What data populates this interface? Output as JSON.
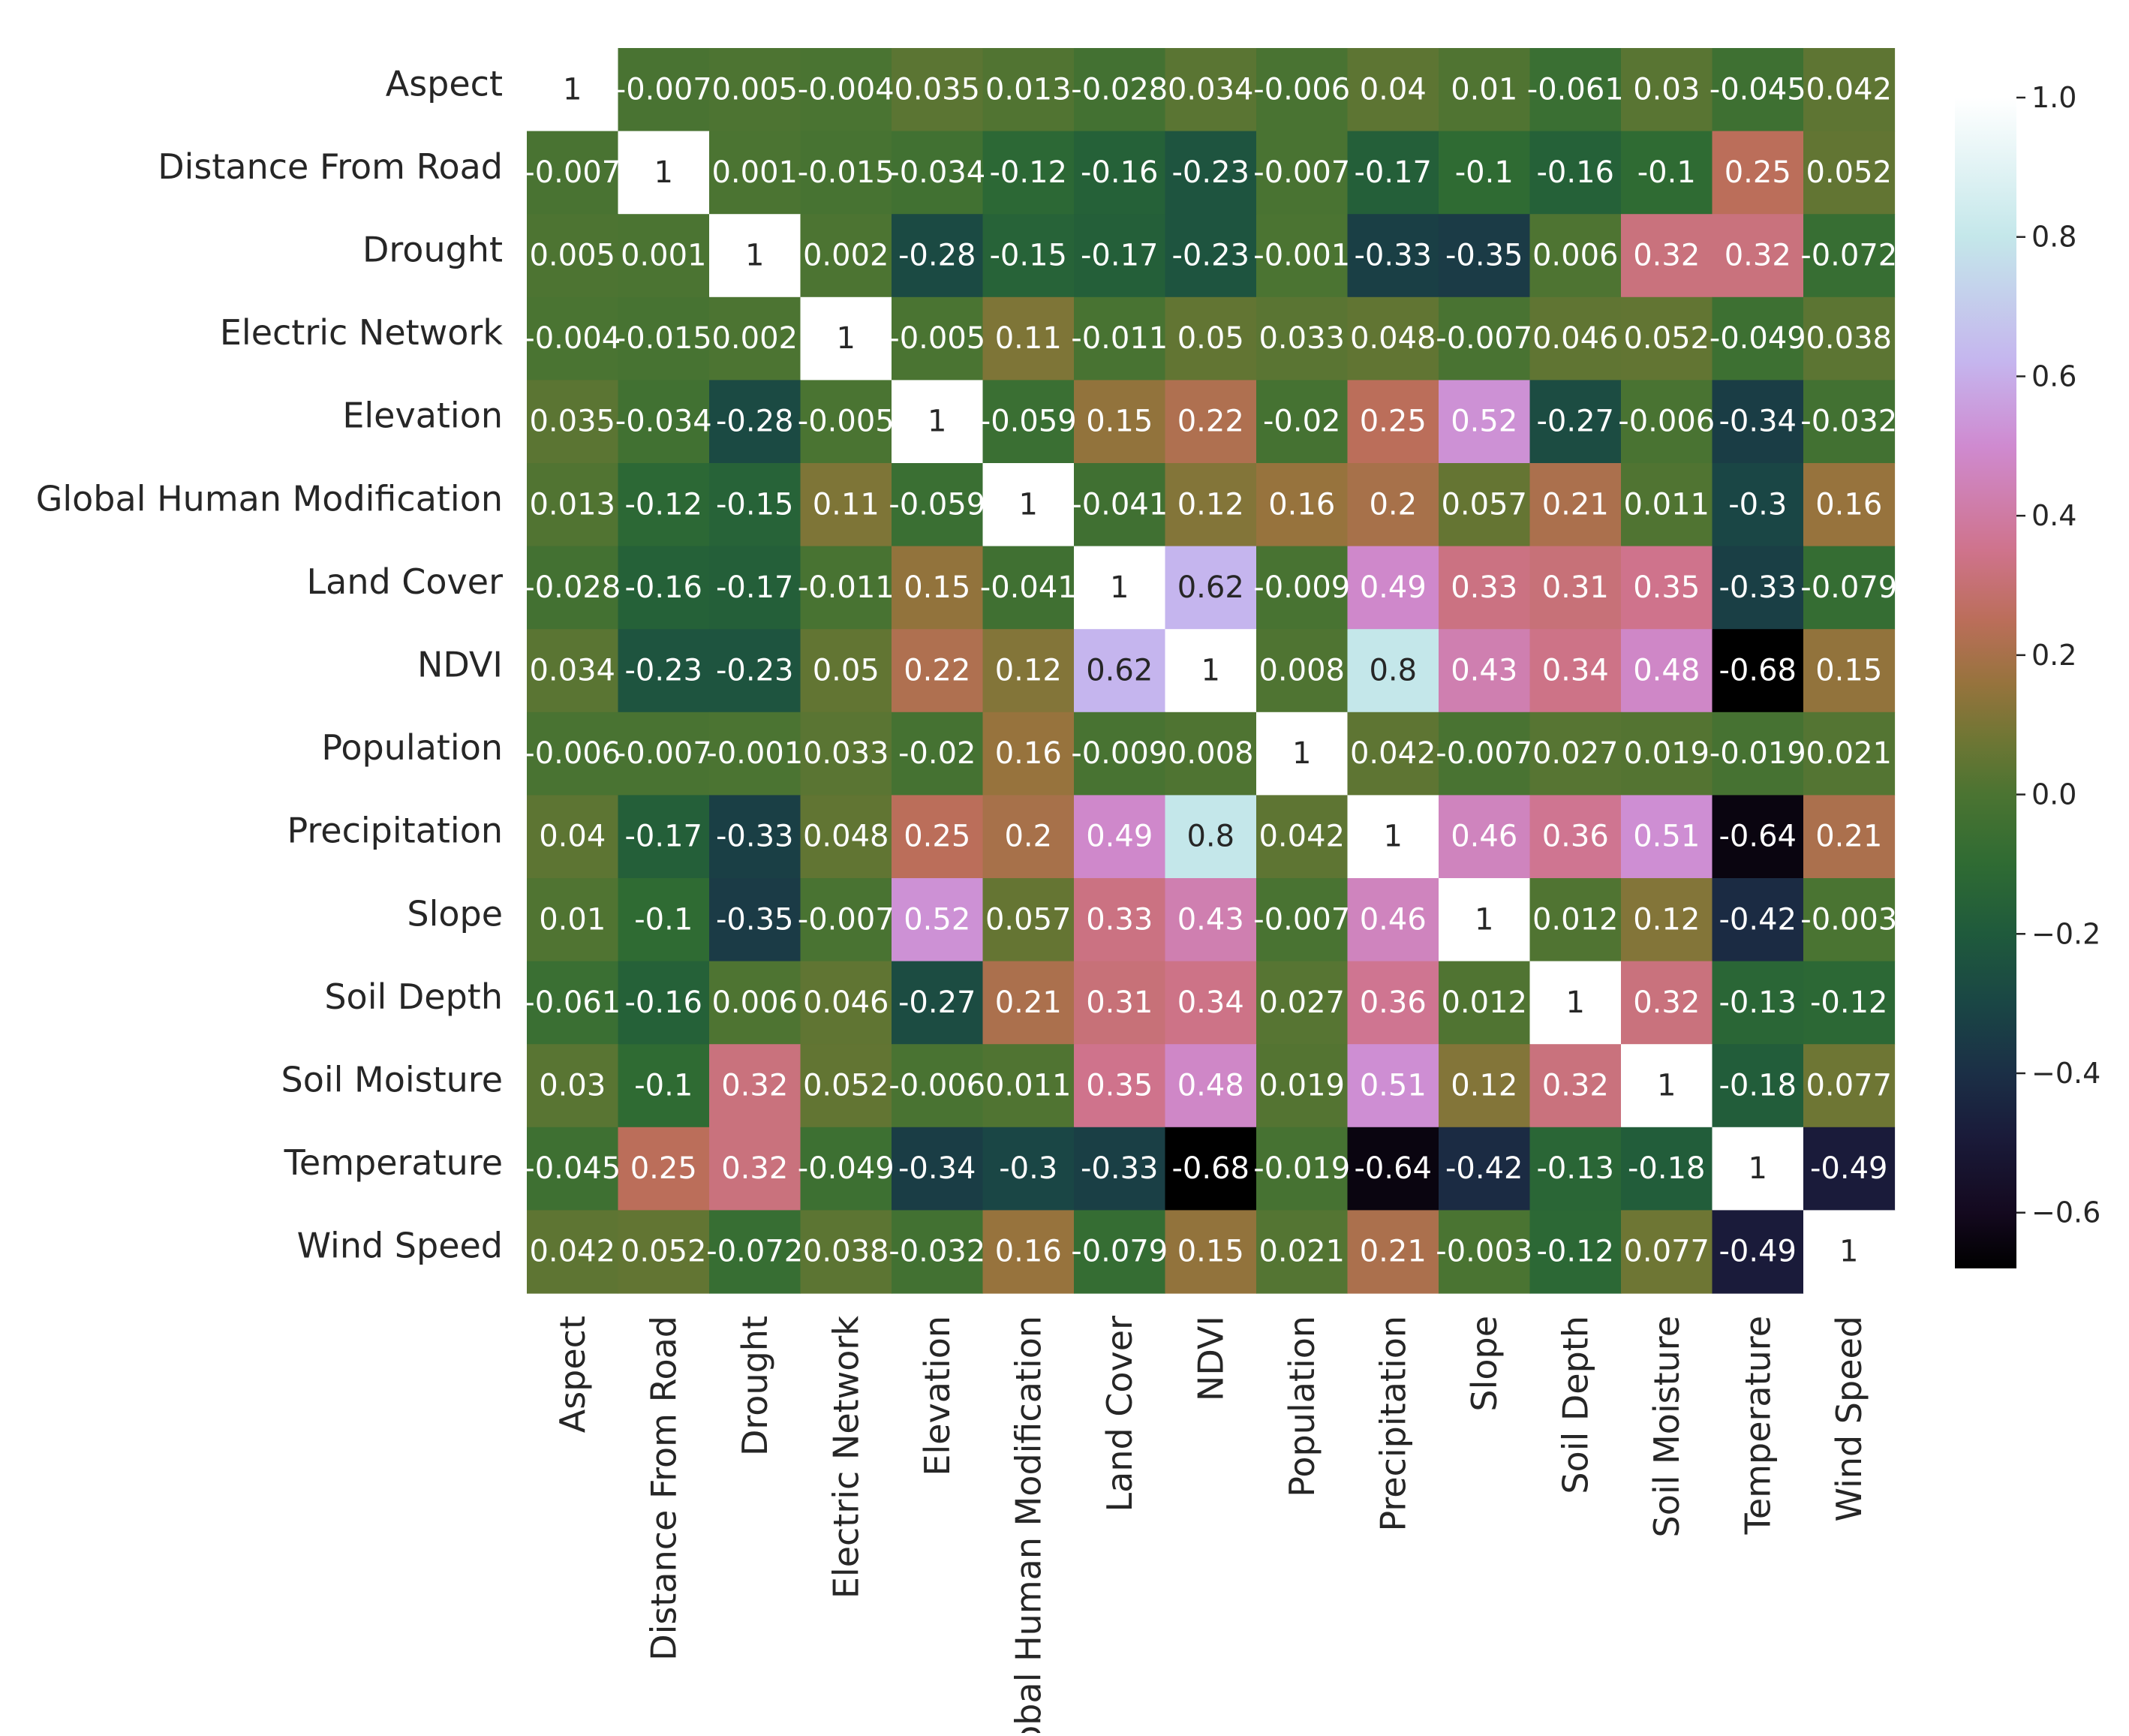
{
  "chart_data": {
    "type": "heatmap",
    "title": "",
    "xlabel": "",
    "ylabel": "",
    "variables": [
      "Aspect",
      "Distance From Road",
      "Drought",
      "Electric Network",
      "Elevation",
      "Global Human Modification",
      "Land Cover",
      "NDVI",
      "Population",
      "Precipitation",
      "Slope",
      "Soil Depth",
      "Soil Moisture",
      "Temperature",
      "Wind Speed"
    ],
    "values": [
      [
        "1",
        "-0.007",
        "0.005",
        "-0.004",
        "0.035",
        "0.013",
        "-0.028",
        "0.034",
        "-0.006",
        "0.04",
        "0.01",
        "-0.061",
        "0.03",
        "-0.045",
        "0.042"
      ],
      [
        "-0.007",
        "1",
        "0.001",
        "-0.015",
        "-0.034",
        "-0.12",
        "-0.16",
        "-0.23",
        "-0.007",
        "-0.17",
        "-0.1",
        "-0.16",
        "-0.1",
        "0.25",
        "0.052"
      ],
      [
        "0.005",
        "0.001",
        "1",
        "0.002",
        "-0.28",
        "-0.15",
        "-0.17",
        "-0.23",
        "-0.001",
        "-0.33",
        "-0.35",
        "0.006",
        "0.32",
        "0.32",
        "-0.072"
      ],
      [
        "-0.004",
        "-0.015",
        "0.002",
        "1",
        "-0.005",
        "0.11",
        "-0.011",
        "0.05",
        "0.033",
        "0.048",
        "-0.007",
        "0.046",
        "0.052",
        "-0.049",
        "0.038"
      ],
      [
        "0.035",
        "-0.034",
        "-0.28",
        "-0.005",
        "1",
        "-0.059",
        "0.15",
        "0.22",
        "-0.02",
        "0.25",
        "0.52",
        "-0.27",
        "-0.006",
        "-0.34",
        "-0.032"
      ],
      [
        "0.013",
        "-0.12",
        "-0.15",
        "0.11",
        "-0.059",
        "1",
        "-0.041",
        "0.12",
        "0.16",
        "0.2",
        "0.057",
        "0.21",
        "0.011",
        "-0.3",
        "0.16"
      ],
      [
        "-0.028",
        "-0.16",
        "-0.17",
        "-0.011",
        "0.15",
        "-0.041",
        "1",
        "0.62",
        "-0.009",
        "0.49",
        "0.33",
        "0.31",
        "0.35",
        "-0.33",
        "-0.079"
      ],
      [
        "0.034",
        "-0.23",
        "-0.23",
        "0.05",
        "0.22",
        "0.12",
        "0.62",
        "1",
        "0.008",
        "0.8",
        "0.43",
        "0.34",
        "0.48",
        "-0.68",
        "0.15"
      ],
      [
        "-0.006",
        "-0.007",
        "-0.001",
        "0.033",
        "-0.02",
        "0.16",
        "-0.009",
        "0.008",
        "1",
        "0.042",
        "-0.007",
        "0.027",
        "0.019",
        "-0.019",
        "0.021"
      ],
      [
        "0.04",
        "-0.17",
        "-0.33",
        "0.048",
        "0.25",
        "0.2",
        "0.49",
        "0.8",
        "0.042",
        "1",
        "0.46",
        "0.36",
        "0.51",
        "-0.64",
        "0.21"
      ],
      [
        "0.01",
        "-0.1",
        "-0.35",
        "-0.007",
        "0.52",
        "0.057",
        "0.33",
        "0.43",
        "-0.007",
        "0.46",
        "1",
        "0.012",
        "0.12",
        "-0.42",
        "-0.003"
      ],
      [
        "-0.061",
        "-0.16",
        "0.006",
        "0.046",
        "-0.27",
        "0.21",
        "0.31",
        "0.34",
        "0.027",
        "0.36",
        "0.012",
        "1",
        "0.32",
        "-0.13",
        "-0.12"
      ],
      [
        "0.03",
        "-0.1",
        "0.32",
        "0.052",
        "-0.006",
        "0.011",
        "0.35",
        "0.48",
        "0.019",
        "0.51",
        "0.12",
        "0.32",
        "1",
        "-0.18",
        "0.077"
      ],
      [
        "-0.045",
        "0.25",
        "0.32",
        "-0.049",
        "-0.34",
        "-0.3",
        "-0.33",
        "-0.68",
        "-0.019",
        "-0.64",
        "-0.42",
        "-0.13",
        "-0.18",
        "1",
        "-0.49"
      ],
      [
        "0.042",
        "0.052",
        "-0.072",
        "0.038",
        "-0.032",
        "0.16",
        "-0.079",
        "0.15",
        "0.021",
        "0.21",
        "-0.003",
        "-0.12",
        "0.077",
        "-0.49",
        "1"
      ]
    ],
    "colorbar": {
      "range": [
        -0.68,
        1.0
      ],
      "ticks": [
        1.0,
        0.8,
        0.6,
        0.4,
        0.2,
        0.0,
        -0.2,
        -0.4,
        -0.6
      ],
      "tick_labels": [
        "1.0",
        "0.8",
        "0.6",
        "0.4",
        "0.2",
        "0.0",
        "−0.2",
        "−0.4",
        "−0.6"
      ]
    },
    "colormap": {
      "name": "cubehelix",
      "stops": [
        {
          "v": -0.68,
          "c": "#000000"
        },
        {
          "v": -0.6,
          "c": "#14091f"
        },
        {
          "v": -0.49,
          "c": "#1a1b3a"
        },
        {
          "v": -0.4,
          "c": "#1b2f46"
        },
        {
          "v": -0.3,
          "c": "#1a4645"
        },
        {
          "v": -0.2,
          "c": "#1f5a3c"
        },
        {
          "v": -0.1,
          "c": "#2f6b33"
        },
        {
          "v": 0.0,
          "c": "#4b7432"
        },
        {
          "v": 0.08,
          "c": "#6f7634"
        },
        {
          "v": 0.16,
          "c": "#97733d"
        },
        {
          "v": 0.25,
          "c": "#bb6e5a"
        },
        {
          "v": 0.35,
          "c": "#cf738c"
        },
        {
          "v": 0.5,
          "c": "#cf8ad0"
        },
        {
          "v": 0.62,
          "c": "#c5b5ee"
        },
        {
          "v": 0.8,
          "c": "#c4e7ea"
        },
        {
          "v": 1.0,
          "c": "#ffffff"
        }
      ]
    }
  }
}
